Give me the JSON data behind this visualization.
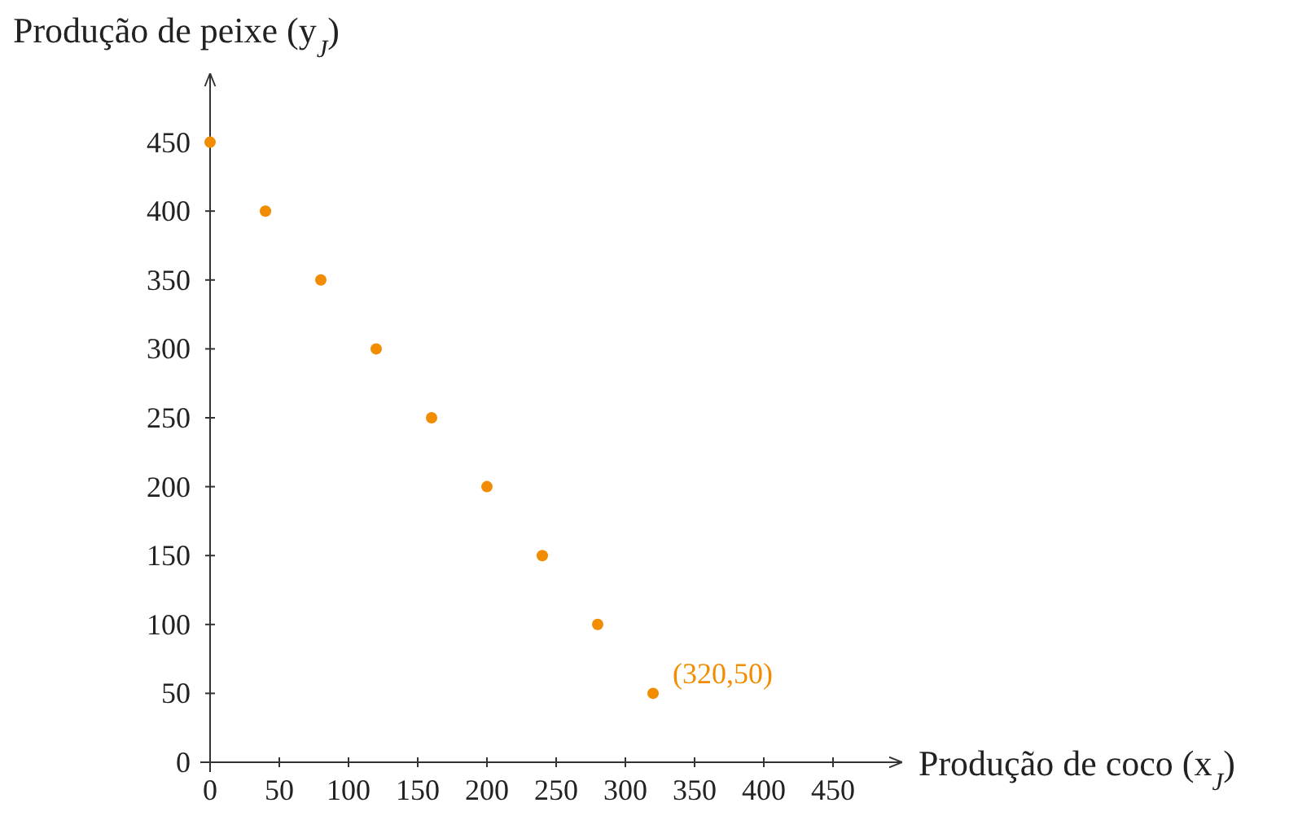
{
  "chart_data": {
    "type": "scatter",
    "xlabel": "Produção de coco (x$_{J}$)",
    "ylabel": "Produção de peixe (y$_{J}$)",
    "x": [
      0,
      40,
      80,
      120,
      160,
      200,
      240,
      280,
      320
    ],
    "series": [
      {
        "color": "#f28c00",
        "values": [
          450,
          400,
          350,
          300,
          250,
          200,
          150,
          100,
          50
        ]
      }
    ],
    "xlim": [
      0,
      500
    ],
    "ylim": [
      0,
      500
    ],
    "xticks": [
      0,
      50,
      100,
      150,
      200,
      250,
      300,
      350,
      400,
      450
    ],
    "yticks": [
      0,
      50,
      100,
      150,
      200,
      250,
      300,
      350,
      400,
      450
    ],
    "grid": false,
    "marker": "circle",
    "annotations": [
      {
        "text": "(320,50)",
        "x": 320,
        "y": 50
      }
    ]
  }
}
